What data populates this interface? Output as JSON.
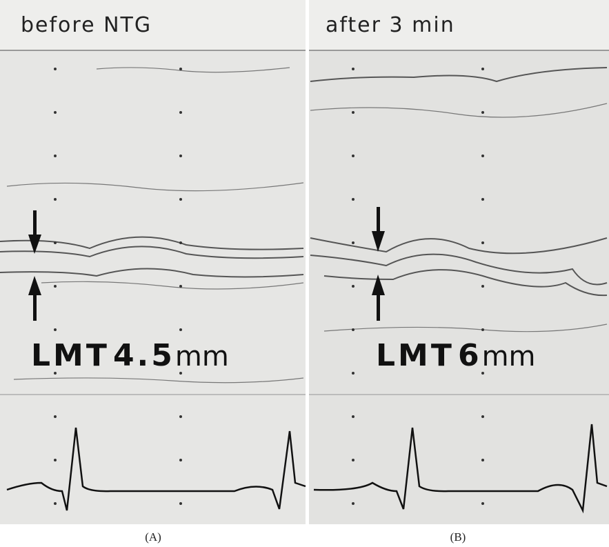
{
  "panels": [
    {
      "heading": "before NTG",
      "measure": {
        "label": "LMT",
        "value": "4.5",
        "unit": "mm"
      },
      "caption": "(A)"
    },
    {
      "heading": "after 3 min",
      "measure": {
        "label": "LMT",
        "value": "6",
        "unit": "mm"
      },
      "caption": "(B)"
    }
  ]
}
